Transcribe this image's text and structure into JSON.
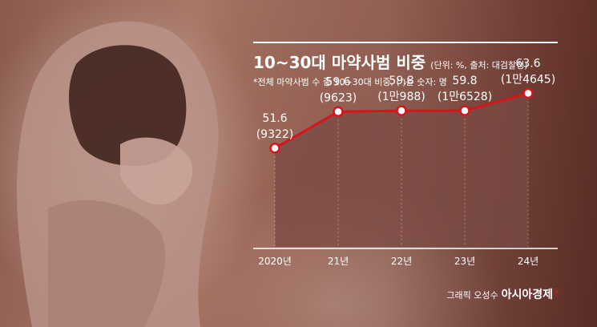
{
  "header": {
    "title": "10~30대 마약사범 비중",
    "subtitle": "(단위: %, 출처: 대검찰청)",
    "note": "*전체 마약사범 수 중 10~30대 비중, ( )는 숫자: 명"
  },
  "footer": {
    "credit": "그래픽 오성수",
    "brand": "아시아경제",
    "brand_mark": "ⓔ"
  },
  "colors": {
    "line": "#d8141b",
    "area": "#7a4a44",
    "text": "#ffffff"
  },
  "chart_data": {
    "type": "area",
    "title": "10~30대 마약사범 비중",
    "categories": [
      "2020년",
      "21년",
      "22년",
      "23년",
      "24년"
    ],
    "values": [
      51.6,
      59.6,
      59.8,
      59.8,
      63.6
    ],
    "counts": [
      "(9322)",
      "(9623)",
      "(1만988)",
      "(1만6528)",
      "(1만4645)"
    ],
    "value_labels": [
      "51.6",
      "59.6",
      "59.8",
      "59.8",
      "63.6"
    ],
    "unit": "%",
    "ylim": [
      30,
      70
    ],
    "grid": false,
    "legend": "none"
  }
}
